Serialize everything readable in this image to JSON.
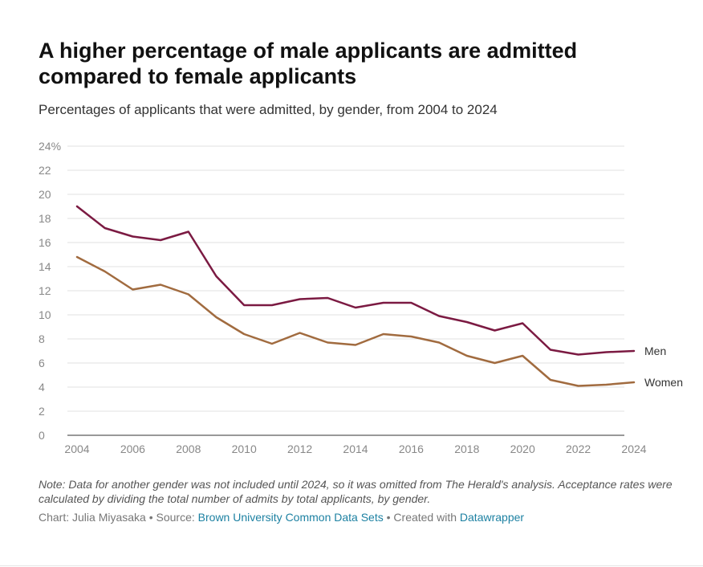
{
  "header": {
    "title": "A higher percentage of male applicants are admitted compared to female applicants",
    "subtitle": "Percentages of applicants that were admitted, by gender, from 2004 to 2024"
  },
  "chart_data": {
    "type": "line",
    "title": "A higher percentage of male applicants are admitted compared to female applicants",
    "subtitle": "Percentages of applicants that were admitted, by gender, from 2004 to 2024",
    "xlabel": "",
    "ylabel": "",
    "x": [
      2004,
      2005,
      2006,
      2007,
      2008,
      2009,
      2010,
      2011,
      2012,
      2013,
      2014,
      2015,
      2016,
      2017,
      2018,
      2019,
      2020,
      2021,
      2022,
      2023,
      2024
    ],
    "xticks": [
      "2004",
      "2006",
      "2008",
      "2010",
      "2012",
      "2014",
      "2016",
      "2018",
      "2020",
      "2022",
      "2024"
    ],
    "ylim": [
      0,
      24
    ],
    "yticks": [
      "24%",
      "22",
      "20",
      "18",
      "16",
      "14",
      "12",
      "10",
      "8",
      "6",
      "4",
      "2",
      "0"
    ],
    "grid": true,
    "legend": "inline labels at line ends",
    "series": [
      {
        "name": "Men",
        "color": "#7b1a42",
        "values": [
          19.0,
          17.2,
          16.5,
          16.2,
          16.9,
          13.2,
          10.8,
          10.8,
          11.3,
          11.4,
          10.6,
          11.0,
          11.0,
          9.9,
          9.4,
          8.7,
          9.3,
          7.1,
          6.7,
          6.9,
          7.0
        ]
      },
      {
        "name": "Women",
        "color": "#a16b3f",
        "values": [
          14.8,
          13.6,
          12.1,
          12.5,
          11.7,
          9.8,
          8.4,
          7.6,
          8.5,
          7.7,
          7.5,
          8.4,
          8.2,
          7.7,
          6.6,
          6.0,
          6.6,
          4.6,
          4.1,
          4.2,
          4.4
        ]
      }
    ]
  },
  "footer": {
    "note": "Note: Data for another gender was not included until 2024, so it was omitted from The Herald's analysis. Acceptance rates were calculated by dividing the total number of admits by total applicants, by gender.",
    "chart_prefix": "Chart: Julia Miyasaka • Source: ",
    "source_link": "Brown University Common Data Sets",
    "created_prefix": " • Created with ",
    "tool_link": "Datawrapper"
  }
}
